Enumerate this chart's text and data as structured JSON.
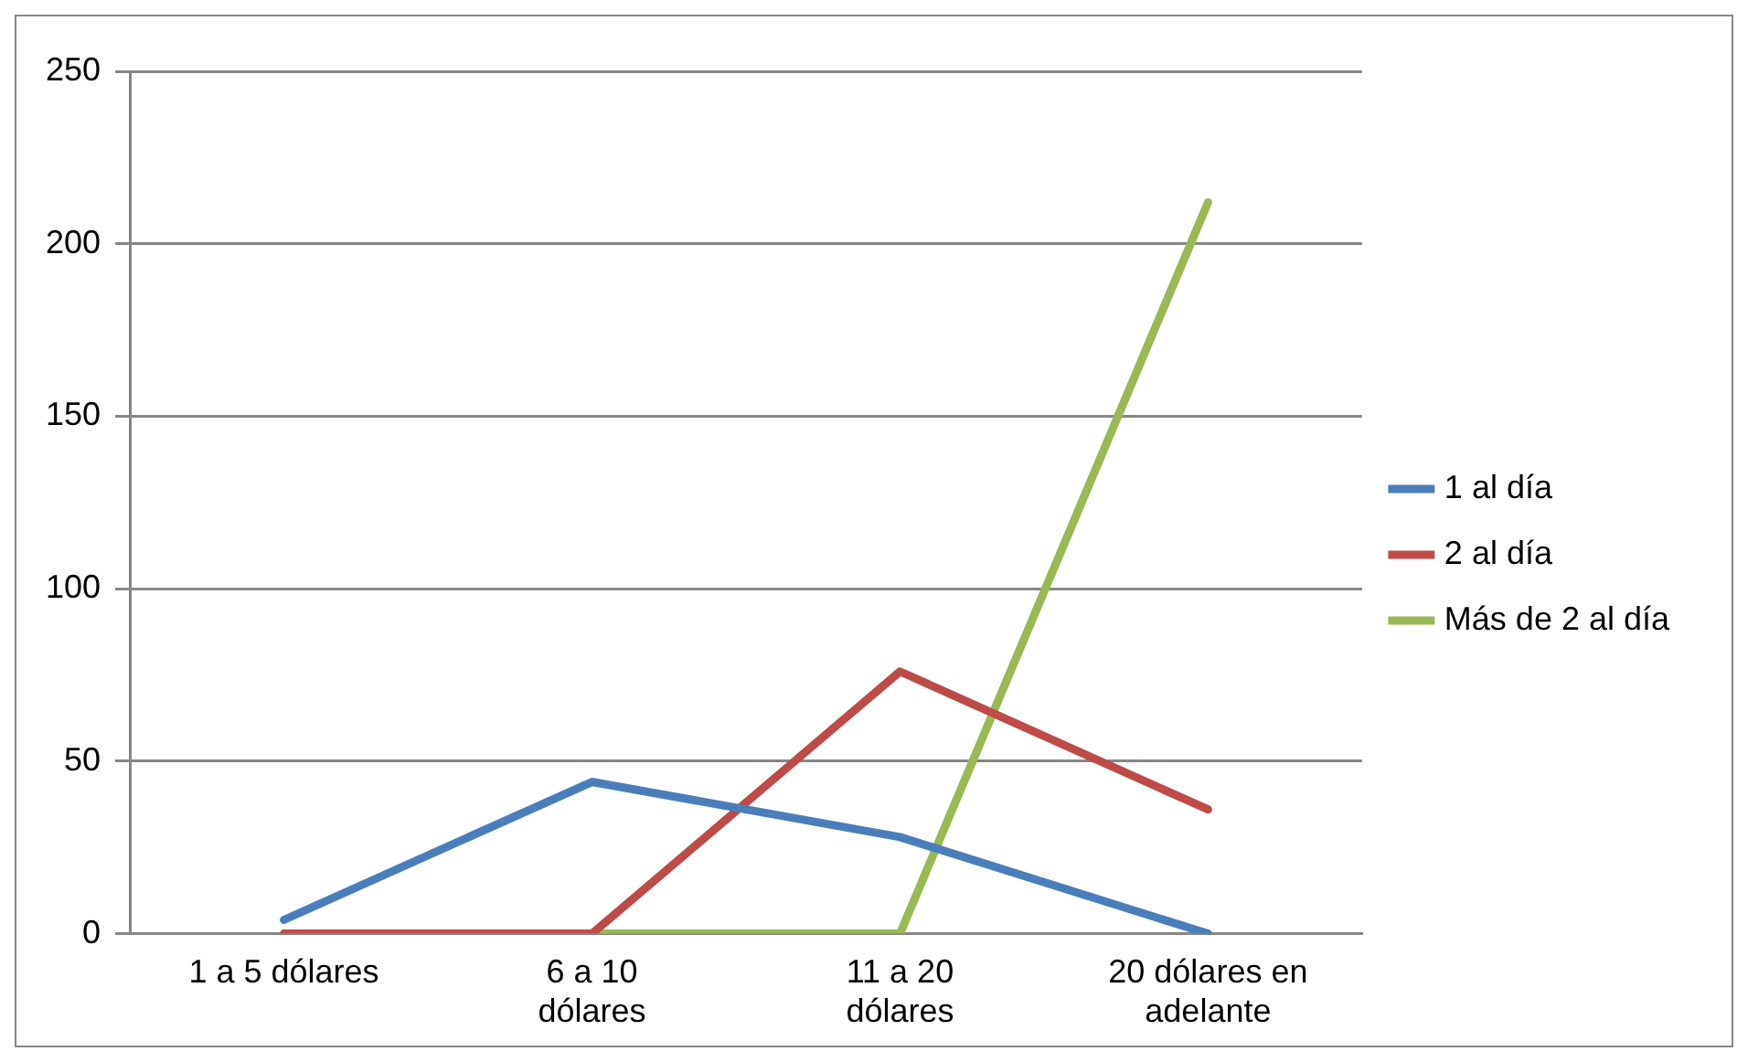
{
  "chart_data": {
    "type": "line",
    "categories": [
      "1 a 5 dólares",
      "6 a 10 dólares",
      "11 a 20 dólares",
      "20 dólares en adelante"
    ],
    "series": [
      {
        "name": "1 al día",
        "color": "#4a7ebb",
        "values": [
          4,
          44,
          28,
          0
        ]
      },
      {
        "name": "2 al día",
        "color": "#be4b48",
        "values": [
          0,
          0,
          76,
          36
        ]
      },
      {
        "name": "Más de 2 al día",
        "color": "#98b954",
        "values": [
          0,
          0,
          0,
          212
        ]
      }
    ],
    "ylim": [
      0,
      250
    ],
    "yticks": [
      0,
      50,
      100,
      150,
      200,
      250
    ],
    "grid": "y",
    "legend": "right",
    "marker": "none",
    "line_style": "solid"
  }
}
